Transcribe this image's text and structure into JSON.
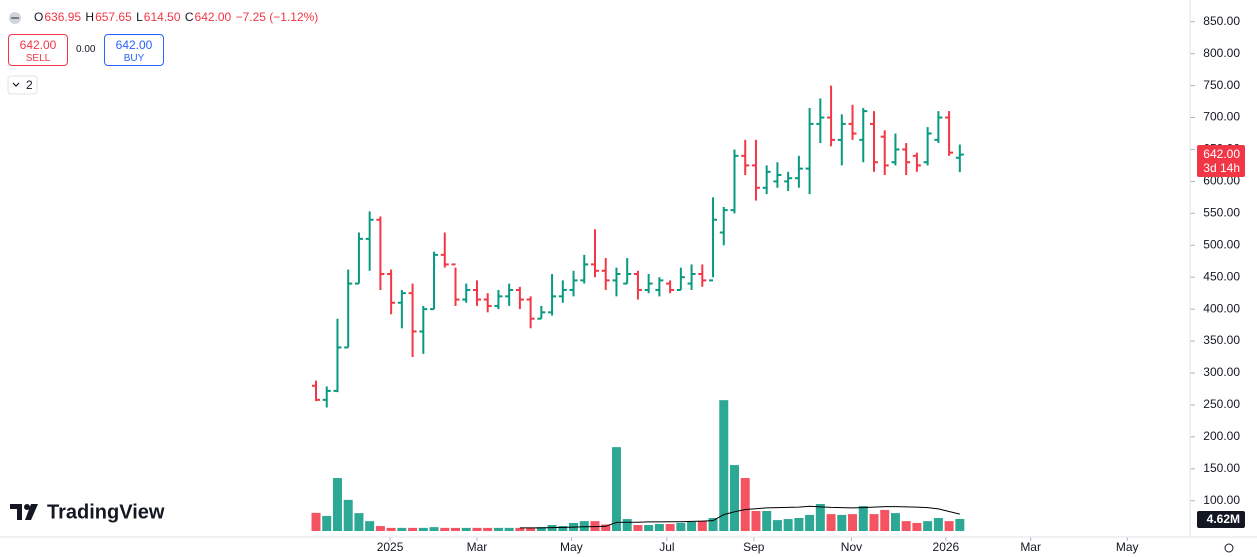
{
  "header": {
    "o_prefix": "O",
    "open": "636.95",
    "h_prefix": "H",
    "high": "657.65",
    "l_prefix": "L",
    "low": "614.50",
    "c_prefix": "C",
    "close": "642.00",
    "change": "−7.25 (−1.12%)"
  },
  "trade": {
    "sell_price": "642.00",
    "sell": "SELL",
    "spread": "0.00",
    "buy_price": "642.00",
    "buy": "BUY"
  },
  "indicator_count": "2",
  "logo": "TradingView",
  "price_tag": {
    "price": "642.00",
    "countdown": "3d 14h"
  },
  "volume_tag": "4.62M",
  "chart_data": {
    "type": "ohlc",
    "up_color": "#089981",
    "down_color": "#f23645",
    "ma_color": "#000000",
    "xlim": [
      -29.45,
      81.45
    ],
    "xticks": [
      {
        "value": 6.9,
        "label": "2025"
      },
      {
        "value": 15.0,
        "label": "Mar"
      },
      {
        "value": 23.8,
        "label": "May"
      },
      {
        "value": 32.7,
        "label": "Jul"
      },
      {
        "value": 40.8,
        "label": "Sep"
      },
      {
        "value": 49.9,
        "label": "Nov"
      },
      {
        "value": 58.7,
        "label": "2026"
      },
      {
        "value": 66.6,
        "label": "Mar"
      },
      {
        "value": 75.6,
        "label": "May"
      }
    ],
    "ylim": [
      26,
      884
    ],
    "yticks": [
      {
        "value": 850,
        "label": "850.00"
      },
      {
        "value": 800,
        "label": "800.00"
      },
      {
        "value": 750,
        "label": "750.00"
      },
      {
        "value": 700,
        "label": "700.00"
      },
      {
        "value": 650,
        "label": "650.00"
      },
      {
        "value": 600,
        "label": "600.00"
      },
      {
        "value": 550,
        "label": "550.00"
      },
      {
        "value": 500,
        "label": "500.00"
      },
      {
        "value": 450,
        "label": "450.00"
      },
      {
        "value": 400,
        "label": "400.00"
      },
      {
        "value": 350,
        "label": "350.00"
      },
      {
        "value": 300,
        "label": "300.00"
      },
      {
        "value": 250,
        "label": "250.00"
      },
      {
        "value": 200,
        "label": "200.00"
      },
      {
        "value": 150,
        "label": "150.00"
      },
      {
        "value": 100,
        "label": "100.00"
      }
    ],
    "open": [
      280,
      258,
      272,
      340,
      440,
      510,
      540,
      455,
      410,
      425,
      365,
      400,
      485,
      470,
      415,
      430,
      415,
      405,
      420,
      430,
      415,
      385,
      395,
      420,
      430,
      445,
      470,
      460,
      445,
      440,
      455,
      430,
      430,
      440,
      430,
      440,
      455,
      445,
      520,
      555,
      640,
      625,
      590,
      600,
      600,
      605,
      620,
      690,
      700,
      665,
      690,
      665,
      690,
      670,
      630,
      650,
      640,
      630,
      665,
      700,
      636.95
    ],
    "high": [
      288,
      279,
      385,
      462,
      520,
      553,
      545,
      462,
      430,
      440,
      405,
      490,
      520,
      465,
      440,
      445,
      425,
      430,
      440,
      435,
      420,
      405,
      455,
      445,
      460,
      485,
      525,
      480,
      465,
      480,
      460,
      455,
      450,
      445,
      465,
      470,
      470,
      575,
      560,
      650,
      665,
      665,
      625,
      630,
      615,
      640,
      715,
      730,
      750,
      705,
      720,
      715,
      710,
      680,
      675,
      660,
      645,
      685,
      710,
      710,
      657.65
    ],
    "low": [
      256,
      246,
      270,
      340,
      440,
      460,
      430,
      392,
      370,
      325,
      330,
      400,
      465,
      405,
      410,
      405,
      395,
      400,
      405,
      400,
      370,
      385,
      390,
      410,
      420,
      440,
      450,
      430,
      420,
      440,
      415,
      425,
      420,
      425,
      430,
      430,
      435,
      450,
      500,
      550,
      610,
      570,
      580,
      590,
      585,
      590,
      580,
      660,
      655,
      625,
      665,
      630,
      615,
      610,
      625,
      610,
      615,
      625,
      660,
      640,
      614.5
    ],
    "close": [
      258,
      272,
      340,
      440,
      510,
      540,
      455,
      410,
      425,
      365,
      400,
      485,
      470,
      415,
      430,
      415,
      405,
      420,
      430,
      415,
      385,
      395,
      420,
      430,
      445,
      470,
      460,
      445,
      455,
      455,
      430,
      440,
      445,
      430,
      450,
      455,
      445,
      540,
      555,
      640,
      625,
      590,
      615,
      610,
      605,
      620,
      690,
      700,
      665,
      690,
      675,
      710,
      630,
      625,
      650,
      630,
      625,
      675,
      700,
      645,
      642
    ],
    "volume_ylim": [
      0,
      52
    ],
    "volume": [
      7,
      5.8,
      20.4,
      12,
      6.9,
      3.8,
      1.9,
      1.2,
      1.2,
      1.2,
      1.2,
      1.5,
      1.2,
      1.2,
      1.2,
      1.2,
      1.2,
      1.2,
      1.2,
      1.2,
      1.2,
      1.5,
      2.3,
      1.9,
      3.1,
      3.8,
      3.8,
      2.5,
      32.3,
      4.6,
      2.3,
      2.3,
      2.7,
      2.7,
      3.1,
      3.5,
      3.8,
      5,
      50.4,
      25.4,
      20.4,
      7.7,
      7.7,
      4.2,
      4.6,
      5,
      6.2,
      10.4,
      6.5,
      6.2,
      6.5,
      9.6,
      6.5,
      8.1,
      6.9,
      3.8,
      3.1,
      3.8,
      5,
      3.8,
      4.62
    ],
    "volume_ma": [
      null,
      null,
      null,
      null,
      null,
      null,
      null,
      null,
      null,
      null,
      null,
      null,
      null,
      null,
      null,
      null,
      null,
      null,
      null,
      1.2,
      1.2,
      1.2,
      1.3,
      1.4,
      1.5,
      1.6,
      1.7,
      1.8,
      3.3,
      3.4,
      3.4,
      3.5,
      3.5,
      3.6,
      3.6,
      3.7,
      3.8,
      4.0,
      6.3,
      7.4,
      8.3,
      8.6,
      8.9,
      9.0,
      9.1,
      9.2,
      9.5,
      9.3,
      9.1,
      9.0,
      8.9,
      9.0,
      9.2,
      9.4,
      9.4,
      9.3,
      9.2,
      9.0,
      8.5,
      7.5,
      6.5
    ]
  }
}
